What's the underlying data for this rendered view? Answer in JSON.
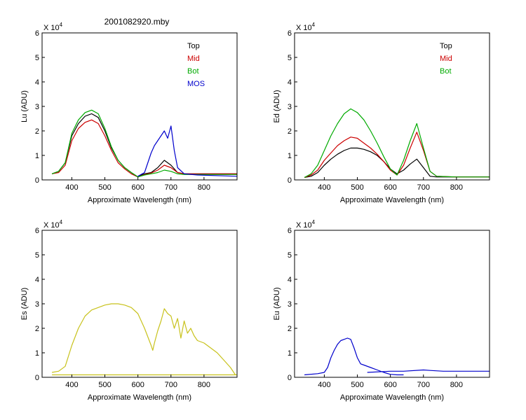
{
  "figure_title": "2001082920.mby",
  "colors": {
    "top": "#000000",
    "mid": "#cc0000",
    "bot": "#00aa00",
    "mos": "#0000cc",
    "es": "#c8c21c",
    "eu": "#0000cc"
  },
  "chart_data": [
    {
      "type": "line",
      "id": "lu",
      "ylabel": "Lu (ADU)",
      "xlabel": "Approximate Wavelength (nm)",
      "multiplier": "X 10",
      "multiplier_exp": "4",
      "xlim": [
        310,
        900
      ],
      "ylim": [
        0,
        6
      ],
      "xticks": [
        400,
        500,
        600,
        700,
        800
      ],
      "yticks": [
        0,
        1,
        2,
        3,
        4,
        5,
        6
      ],
      "legend": [
        "Top",
        "Mid",
        "Bot",
        "MOS"
      ],
      "legend_position": "top-right",
      "series": [
        {
          "name": "Top",
          "color_key": "top",
          "x": [
            340,
            360,
            380,
            400,
            420,
            440,
            460,
            480,
            500,
            520,
            540,
            560,
            580,
            600,
            610,
            620,
            640,
            660,
            680,
            700,
            720,
            740,
            800,
            900
          ],
          "y": [
            0.25,
            0.35,
            0.7,
            1.8,
            2.3,
            2.6,
            2.7,
            2.55,
            2.0,
            1.3,
            0.8,
            0.5,
            0.3,
            0.12,
            0.2,
            0.25,
            0.3,
            0.5,
            0.8,
            0.6,
            0.3,
            0.25,
            0.25,
            0.25
          ]
        },
        {
          "name": "Mid",
          "color_key": "mid",
          "x": [
            340,
            360,
            380,
            400,
            420,
            440,
            460,
            480,
            500,
            520,
            540,
            560,
            580,
            600,
            620,
            640,
            660,
            680,
            700,
            720,
            740,
            800,
            900
          ],
          "y": [
            0.25,
            0.3,
            0.6,
            1.6,
            2.1,
            2.35,
            2.45,
            2.3,
            1.8,
            1.2,
            0.7,
            0.45,
            0.25,
            0.12,
            0.22,
            0.28,
            0.4,
            0.6,
            0.5,
            0.3,
            0.25,
            0.25,
            0.25
          ]
        },
        {
          "name": "Bot",
          "color_key": "bot",
          "x": [
            340,
            360,
            380,
            400,
            420,
            440,
            460,
            480,
            500,
            520,
            540,
            560,
            580,
            600,
            620,
            640,
            660,
            680,
            700,
            720,
            740,
            800,
            900
          ],
          "y": [
            0.25,
            0.35,
            0.7,
            1.9,
            2.45,
            2.75,
            2.85,
            2.7,
            2.1,
            1.35,
            0.8,
            0.5,
            0.3,
            0.12,
            0.2,
            0.25,
            0.3,
            0.4,
            0.35,
            0.25,
            0.22,
            0.22,
            0.22
          ]
        },
        {
          "name": "MOS",
          "color_key": "mos",
          "x": [
            600,
            620,
            640,
            650,
            660,
            670,
            680,
            690,
            700,
            710,
            720,
            740,
            780,
            900
          ],
          "y": [
            0.15,
            0.3,
            1.1,
            1.4,
            1.6,
            1.8,
            2.0,
            1.7,
            2.2,
            1.2,
            0.5,
            0.25,
            0.2,
            0.15
          ]
        }
      ]
    },
    {
      "type": "line",
      "id": "ed",
      "ylabel": "Ed  (ADU)",
      "xlabel": "Approximate Wavelength (nm)",
      "multiplier": "X 10",
      "multiplier_exp": "4",
      "xlim": [
        310,
        900
      ],
      "ylim": [
        0,
        6
      ],
      "xticks": [
        400,
        500,
        600,
        700,
        800
      ],
      "yticks": [
        0,
        1,
        2,
        3,
        4,
        5,
        6
      ],
      "legend": [
        "Top",
        "Mid",
        "Bot"
      ],
      "legend_position": "top-right",
      "series": [
        {
          "name": "Top",
          "color_key": "top",
          "x": [
            340,
            360,
            380,
            400,
            420,
            440,
            460,
            480,
            500,
            520,
            540,
            560,
            580,
            600,
            620,
            640,
            660,
            680,
            700,
            720,
            740,
            800,
            900
          ],
          "y": [
            0.1,
            0.15,
            0.3,
            0.6,
            0.85,
            1.05,
            1.2,
            1.3,
            1.3,
            1.25,
            1.15,
            1.0,
            0.75,
            0.45,
            0.25,
            0.4,
            0.65,
            0.85,
            0.5,
            0.15,
            0.12,
            0.12,
            0.12
          ]
        },
        {
          "name": "Mid",
          "color_key": "mid",
          "x": [
            340,
            360,
            380,
            400,
            420,
            440,
            460,
            480,
            500,
            520,
            540,
            560,
            580,
            600,
            620,
            640,
            660,
            680,
            700,
            720,
            740,
            800,
            900
          ],
          "y": [
            0.1,
            0.2,
            0.4,
            0.8,
            1.1,
            1.4,
            1.6,
            1.75,
            1.7,
            1.5,
            1.3,
            1.05,
            0.75,
            0.4,
            0.2,
            0.6,
            1.3,
            1.95,
            1.2,
            0.35,
            0.15,
            0.12,
            0.12
          ]
        },
        {
          "name": "Bot",
          "color_key": "bot",
          "x": [
            340,
            360,
            380,
            400,
            420,
            440,
            460,
            480,
            500,
            520,
            540,
            560,
            580,
            600,
            620,
            640,
            660,
            680,
            700,
            720,
            740,
            800,
            900
          ],
          "y": [
            0.1,
            0.25,
            0.6,
            1.2,
            1.8,
            2.3,
            2.7,
            2.9,
            2.75,
            2.45,
            2.0,
            1.5,
            0.95,
            0.45,
            0.2,
            0.8,
            1.6,
            2.3,
            1.3,
            0.35,
            0.15,
            0.12,
            0.12
          ]
        }
      ]
    },
    {
      "type": "line",
      "id": "es",
      "ylabel": "Es  (ADU)",
      "xlabel": "Approximate Wavelength (nm)",
      "multiplier": "X 10",
      "multiplier_exp": "4",
      "xlim": [
        310,
        900
      ],
      "ylim": [
        0,
        6
      ],
      "xticks": [
        400,
        500,
        600,
        700,
        800
      ],
      "yticks": [
        0,
        1,
        2,
        3,
        4,
        5,
        6
      ],
      "series": [
        {
          "name": "",
          "color_key": "es",
          "x": [
            340,
            360,
            380,
            400,
            420,
            440,
            460,
            480,
            500,
            520,
            540,
            560,
            580,
            600,
            620,
            640,
            645,
            650,
            660,
            670,
            680,
            690,
            700,
            710,
            720,
            730,
            740,
            750,
            760,
            770,
            780,
            800,
            820,
            840,
            860,
            880,
            890,
            895
          ],
          "y": [
            0.2,
            0.25,
            0.45,
            1.3,
            2.0,
            2.5,
            2.75,
            2.85,
            2.95,
            3.0,
            3.0,
            2.95,
            2.85,
            2.6,
            2.0,
            1.3,
            1.1,
            1.4,
            1.9,
            2.3,
            2.8,
            2.6,
            2.5,
            2.0,
            2.4,
            1.6,
            2.3,
            1.8,
            2.0,
            1.7,
            1.5,
            1.4,
            1.2,
            1.0,
            0.7,
            0.4,
            0.2,
            0.1
          ]
        },
        {
          "name": "",
          "color_key": "es",
          "x": [
            340,
            900
          ],
          "y": [
            0.1,
            0.1
          ]
        }
      ]
    },
    {
      "type": "line",
      "id": "eu",
      "ylabel": "Eu  (ADU)",
      "xlabel": "Approximate Wavelength (nm)",
      "multiplier": "X 10",
      "multiplier_exp": "4",
      "xlim": [
        310,
        900
      ],
      "ylim": [
        0,
        6
      ],
      "xticks": [
        400,
        500,
        600,
        700,
        800
      ],
      "yticks": [
        0,
        1,
        2,
        3,
        4,
        5,
        6
      ],
      "series": [
        {
          "name": "",
          "color_key": "eu",
          "x": [
            340,
            380,
            400,
            410,
            420,
            430,
            440,
            450,
            460,
            470,
            480,
            490,
            500,
            510,
            520,
            540,
            560,
            580,
            600,
            620,
            640
          ],
          "y": [
            0.1,
            0.15,
            0.2,
            0.4,
            0.8,
            1.1,
            1.35,
            1.5,
            1.55,
            1.6,
            1.55,
            1.2,
            0.8,
            0.55,
            0.5,
            0.4,
            0.3,
            0.2,
            0.12,
            0.1,
            0.1
          ]
        },
        {
          "name": "",
          "color_key": "eu",
          "x": [
            530,
            600,
            640,
            700,
            720,
            760,
            800,
            850,
            900
          ],
          "y": [
            0.2,
            0.25,
            0.25,
            0.3,
            0.28,
            0.25,
            0.25,
            0.25,
            0.25
          ]
        }
      ]
    }
  ]
}
